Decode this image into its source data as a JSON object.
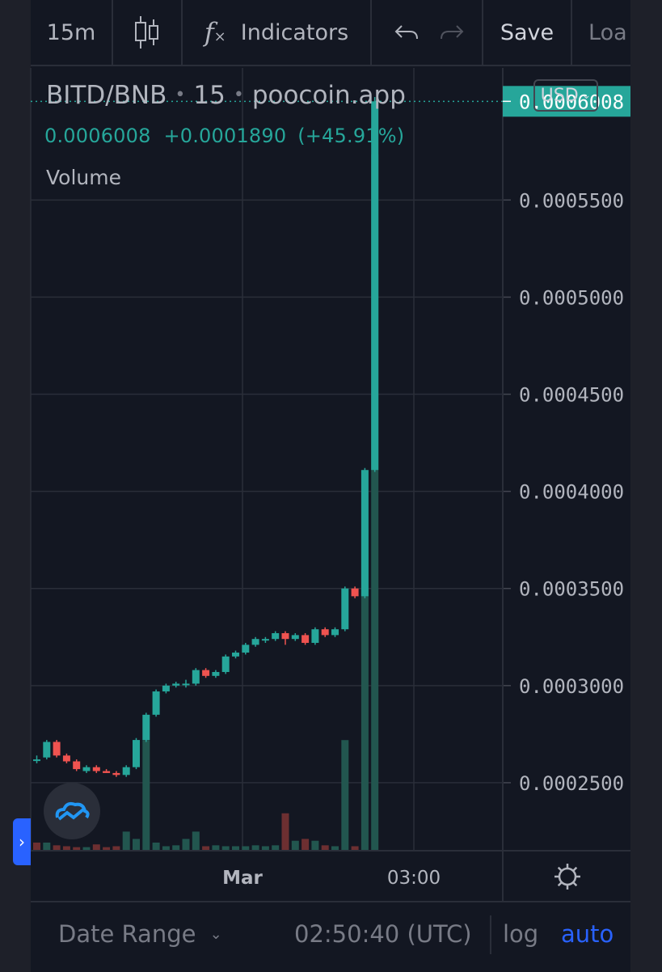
{
  "toolbar": {
    "interval": "15m",
    "indicators_label": "Indicators",
    "save_label": "Save",
    "load_label": "Loa"
  },
  "legend": {
    "pair": "BITD/BNB",
    "interval": "15",
    "source": "poocoin.app",
    "last": "0.0006008",
    "change": "+0.0001890",
    "change_pct": "(+45.91%)",
    "volume_label": "Volume"
  },
  "currency": "USD",
  "price_axis": {
    "last_price_tag": "0.0006008",
    "ticks": [
      "0.0005500",
      "0.0005000",
      "0.0004500",
      "0.0004000",
      "0.0003500",
      "0.0003000",
      "0.0002500"
    ]
  },
  "time_axis": {
    "labels": [
      "Mar",
      "03:00"
    ]
  },
  "bottom": {
    "date_range": "Date Range",
    "clock": "02:50:40 (UTC)",
    "log": "log",
    "auto": "auto"
  },
  "colors": {
    "up": "#26a69a",
    "down": "#ef5350",
    "accent": "#2962ff",
    "background": "#131722"
  },
  "chart_data": {
    "type": "candlestick",
    "ylim": [
      0.000215,
      0.000618
    ],
    "last_price": 0.0006008,
    "series": [
      {
        "o": 0.000262,
        "h": 0.000264,
        "l": 0.00026,
        "c": 0.000262
      },
      {
        "o": 0.000263,
        "h": 0.000272,
        "l": 0.000262,
        "c": 0.000271
      },
      {
        "o": 0.000271,
        "h": 0.000272,
        "l": 0.000263,
        "c": 0.000264
      },
      {
        "o": 0.000264,
        "h": 0.000265,
        "l": 0.00026,
        "c": 0.000261
      },
      {
        "o": 0.000261,
        "h": 0.000262,
        "l": 0.000256,
        "c": 0.000257
      },
      {
        "o": 0.000256,
        "h": 0.000259,
        "l": 0.000255,
        "c": 0.000258
      },
      {
        "o": 0.000258,
        "h": 0.000259,
        "l": 0.000255,
        "c": 0.000256
      },
      {
        "o": 0.000256,
        "h": 0.000257,
        "l": 0.000255,
        "c": 0.000255
      },
      {
        "o": 0.000255,
        "h": 0.000256,
        "l": 0.000253,
        "c": 0.000254
      },
      {
        "o": 0.000254,
        "h": 0.000259,
        "l": 0.000253,
        "c": 0.000258
      },
      {
        "o": 0.000258,
        "h": 0.000273,
        "l": 0.000257,
        "c": 0.000272
      },
      {
        "o": 0.000272,
        "h": 0.000286,
        "l": 0.000271,
        "c": 0.000285
      },
      {
        "o": 0.000285,
        "h": 0.000298,
        "l": 0.000284,
        "c": 0.000297
      },
      {
        "o": 0.000297,
        "h": 0.000301,
        "l": 0.000296,
        "c": 0.0003
      },
      {
        "o": 0.0003,
        "h": 0.000302,
        "l": 0.000299,
        "c": 0.000301
      },
      {
        "o": 0.000301,
        "h": 0.000303,
        "l": 0.000299,
        "c": 0.000301
      },
      {
        "o": 0.000301,
        "h": 0.000309,
        "l": 0.0003,
        "c": 0.000308
      },
      {
        "o": 0.000308,
        "h": 0.000309,
        "l": 0.000304,
        "c": 0.000305
      },
      {
        "o": 0.000305,
        "h": 0.000308,
        "l": 0.000304,
        "c": 0.000307
      },
      {
        "o": 0.000307,
        "h": 0.000316,
        "l": 0.000306,
        "c": 0.000315
      },
      {
        "o": 0.000315,
        "h": 0.000318,
        "l": 0.000314,
        "c": 0.000317
      },
      {
        "o": 0.000317,
        "h": 0.000322,
        "l": 0.000316,
        "c": 0.000321
      },
      {
        "o": 0.000321,
        "h": 0.000325,
        "l": 0.00032,
        "c": 0.000324
      },
      {
        "o": 0.000324,
        "h": 0.000325,
        "l": 0.000322,
        "c": 0.000324
      },
      {
        "o": 0.000324,
        "h": 0.000328,
        "l": 0.000323,
        "c": 0.000327
      },
      {
        "o": 0.000327,
        "h": 0.000328,
        "l": 0.000321,
        "c": 0.000324
      },
      {
        "o": 0.000324,
        "h": 0.000327,
        "l": 0.000323,
        "c": 0.000326
      },
      {
        "o": 0.000326,
        "h": 0.000327,
        "l": 0.000321,
        "c": 0.000322
      },
      {
        "o": 0.000322,
        "h": 0.00033,
        "l": 0.000321,
        "c": 0.000329
      },
      {
        "o": 0.000329,
        "h": 0.00033,
        "l": 0.000325,
        "c": 0.000326
      },
      {
        "o": 0.000326,
        "h": 0.00033,
        "l": 0.000325,
        "c": 0.000329
      },
      {
        "o": 0.000329,
        "h": 0.000351,
        "l": 0.000328,
        "c": 0.00035
      },
      {
        "o": 0.00035,
        "h": 0.000351,
        "l": 0.000345,
        "c": 0.000346
      },
      {
        "o": 0.000346,
        "h": 0.000412,
        "l": 0.000345,
        "c": 0.000411
      },
      {
        "o": 0.000411,
        "h": 0.000603,
        "l": 0.00041,
        "c": 0.0006008
      }
    ],
    "volume": [
      {
        "v": 0.08,
        "up": false
      },
      {
        "v": 0.08,
        "up": true
      },
      {
        "v": 0.05,
        "up": false
      },
      {
        "v": 0.04,
        "up": false
      },
      {
        "v": 0.03,
        "up": false
      },
      {
        "v": 0.03,
        "up": true
      },
      {
        "v": 0.06,
        "up": false
      },
      {
        "v": 0.03,
        "up": false
      },
      {
        "v": 0.04,
        "up": false
      },
      {
        "v": 0.2,
        "up": true
      },
      {
        "v": 0.12,
        "up": true
      },
      {
        "v": 1.2,
        "up": true
      },
      {
        "v": 0.08,
        "up": true
      },
      {
        "v": 0.04,
        "up": true
      },
      {
        "v": 0.05,
        "up": true
      },
      {
        "v": 0.12,
        "up": true
      },
      {
        "v": 0.2,
        "up": true
      },
      {
        "v": 0.04,
        "up": false
      },
      {
        "v": 0.05,
        "up": true
      },
      {
        "v": 0.04,
        "up": true
      },
      {
        "v": 0.04,
        "up": true
      },
      {
        "v": 0.04,
        "up": true
      },
      {
        "v": 0.05,
        "up": true
      },
      {
        "v": 0.04,
        "up": true
      },
      {
        "v": 0.05,
        "up": true
      },
      {
        "v": 0.4,
        "up": false
      },
      {
        "v": 0.1,
        "up": true
      },
      {
        "v": 0.12,
        "up": false
      },
      {
        "v": 0.1,
        "up": true
      },
      {
        "v": 0.05,
        "up": false
      },
      {
        "v": 0.04,
        "up": true
      },
      {
        "v": 1.2,
        "up": true
      },
      {
        "v": 0.04,
        "up": false
      },
      {
        "v": 3.5,
        "up": true
      },
      {
        "v": 7.6,
        "up": true
      }
    ]
  }
}
